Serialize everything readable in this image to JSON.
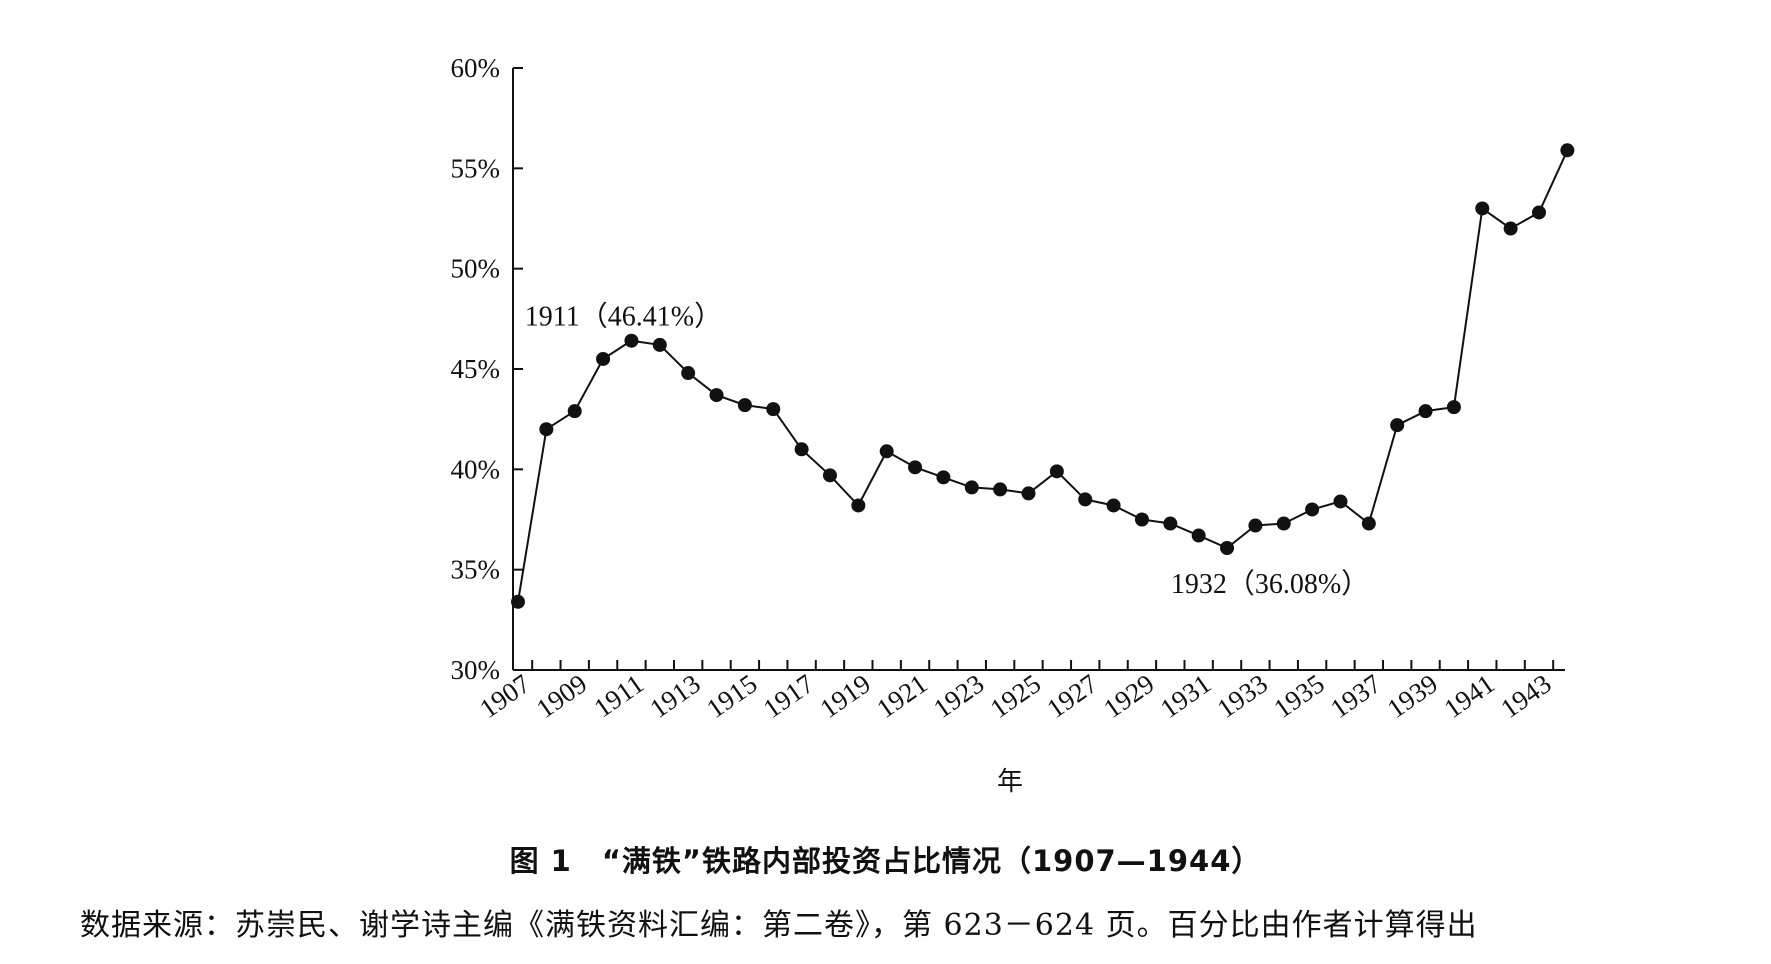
{
  "chart_data": {
    "type": "line",
    "title": "图 1　“满铁”铁路内部投资占比情况（1907—1944）",
    "source_note": "数据来源：苏崇民、谢学诗主编《满铁资料汇编：第二卷》，第 623－624 页。百分比由作者计算得出",
    "xlabel": "年",
    "ylabel": "",
    "ylim": [
      30,
      60
    ],
    "y_ticks": [
      "30%",
      "35%",
      "40%",
      "45%",
      "50%",
      "55%",
      "60%"
    ],
    "x_tick_labels": [
      "1907",
      "1909",
      "1911",
      "1913",
      "1915",
      "1917",
      "1919",
      "1921",
      "1923",
      "1925",
      "1927",
      "1929",
      "1931",
      "1933",
      "1935",
      "1937",
      "1939",
      "1941",
      "1943"
    ],
    "x": [
      1907,
      1908,
      1909,
      1910,
      1911,
      1912,
      1913,
      1914,
      1915,
      1916,
      1917,
      1918,
      1919,
      1920,
      1921,
      1922,
      1923,
      1924,
      1925,
      1926,
      1927,
      1928,
      1929,
      1930,
      1931,
      1932,
      1933,
      1934,
      1935,
      1936,
      1937,
      1938,
      1939,
      1940,
      1941,
      1942,
      1943,
      1944
    ],
    "values": [
      33.4,
      42.0,
      42.9,
      45.5,
      46.41,
      46.2,
      44.8,
      43.7,
      43.2,
      43.0,
      41.0,
      39.7,
      38.2,
      40.9,
      40.1,
      39.6,
      39.1,
      39.0,
      38.8,
      39.9,
      38.5,
      38.2,
      37.5,
      37.3,
      36.7,
      36.08,
      37.2,
      37.3,
      38.0,
      38.4,
      37.3,
      42.2,
      42.9,
      43.1,
      53.0,
      52.0,
      52.8,
      55.9
    ],
    "annotations": [
      {
        "year": 1911,
        "text": "1911（46.41%）"
      },
      {
        "year": 1932,
        "text": "1932（36.08%）"
      }
    ],
    "grid": false,
    "legend": "none"
  }
}
